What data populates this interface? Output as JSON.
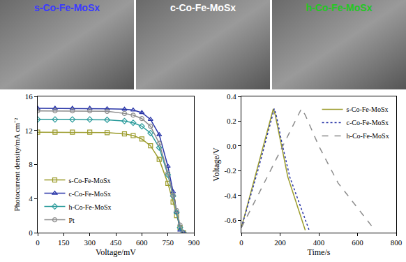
{
  "images": [
    {
      "label": "s-Co-Fe-MoSx",
      "color": "#3a3aff"
    },
    {
      "label": "c-Co-Fe-MoSx",
      "color": "#ffffff"
    },
    {
      "label": "h-Co-Fe-MoSx",
      "color": "#22c822"
    }
  ],
  "chart_data": [
    {
      "type": "line",
      "x_label": "Voltage/mV",
      "y_label": "Photocurrent density/mA cm⁻²",
      "x": [
        0,
        100,
        200,
        300,
        400,
        500,
        550,
        600,
        650,
        700,
        750,
        780,
        800,
        820,
        840
      ],
      "series": [
        {
          "name": "s-Co-Fe-MoSx",
          "color": "#9c9c2c",
          "marker": "square",
          "line_style": "solid",
          "values": [
            11.8,
            11.8,
            11.8,
            11.8,
            11.75,
            11.6,
            11.4,
            11.0,
            10.2,
            8.6,
            5.8,
            3.6,
            2.0,
            0.6,
            0
          ]
        },
        {
          "name": "c-Co-Fe-MoSx",
          "color": "#2a36a8",
          "marker": "triangle-up",
          "line_style": "solid",
          "values": [
            14.6,
            14.6,
            14.6,
            14.6,
            14.55,
            14.5,
            14.4,
            14.1,
            13.3,
            11.5,
            7.8,
            4.8,
            2.4,
            0.3,
            0
          ]
        },
        {
          "name": "h-Co-Fe-MoSx",
          "color": "#2c9c9c",
          "marker": "diamond",
          "line_style": "solid",
          "values": [
            13.3,
            13.3,
            13.3,
            13.3,
            13.25,
            13.1,
            12.9,
            12.5,
            11.7,
            10.0,
            6.8,
            4.3,
            2.4,
            0.6,
            0
          ]
        },
        {
          "name": "Pt",
          "color": "#8c8c8c",
          "marker": "circle",
          "line_style": "solid",
          "values": [
            14.3,
            14.3,
            14.3,
            14.3,
            14.25,
            14.0,
            13.8,
            13.4,
            12.5,
            10.5,
            7.0,
            4.4,
            2.6,
            0.9,
            0
          ]
        }
      ],
      "xlim": [
        0,
        900
      ],
      "xticks": [
        0,
        150,
        300,
        450,
        600,
        750,
        900
      ],
      "ylim": [
        0,
        16
      ],
      "yticks": [
        0,
        4,
        8,
        12,
        16
      ],
      "legend": "lower left"
    },
    {
      "type": "line",
      "x_label": "Time/s",
      "y_label": "Voltage/V",
      "series": [
        {
          "name": "s-Co-Fe-MoSx",
          "color": "#9c9c2c",
          "line_style": "solid",
          "x": [
            0,
            80,
            165,
            175,
            200,
            240,
            330
          ],
          "values": [
            -0.66,
            -0.2,
            0.3,
            0.25,
            0.05,
            -0.25,
            -0.68
          ]
        },
        {
          "name": "c-Co-Fe-MoSx",
          "color": "#2a36a8",
          "line_style": "dot",
          "x": [
            0,
            85,
            170,
            180,
            210,
            250,
            350
          ],
          "values": [
            -0.66,
            -0.2,
            0.3,
            0.25,
            0.02,
            -0.25,
            -0.68
          ]
        },
        {
          "name": "h-Co-Fe-MoSx",
          "color": "#8c8c8c",
          "line_style": "dash",
          "x": [
            0,
            150,
            310,
            330,
            400,
            500,
            690
          ],
          "values": [
            -0.66,
            -0.2,
            0.3,
            0.25,
            0.0,
            -0.3,
            -0.68
          ]
        }
      ],
      "xlim": [
        0,
        800
      ],
      "xticks": [
        0,
        200,
        400,
        600,
        800
      ],
      "ylim": [
        -0.7,
        0.4
      ],
      "yticks": [
        -0.6,
        -0.4,
        -0.2,
        {
          "value": 0,
          "label": "0.0"
        },
        0.2,
        0.4
      ],
      "legend": "upper right"
    }
  ]
}
